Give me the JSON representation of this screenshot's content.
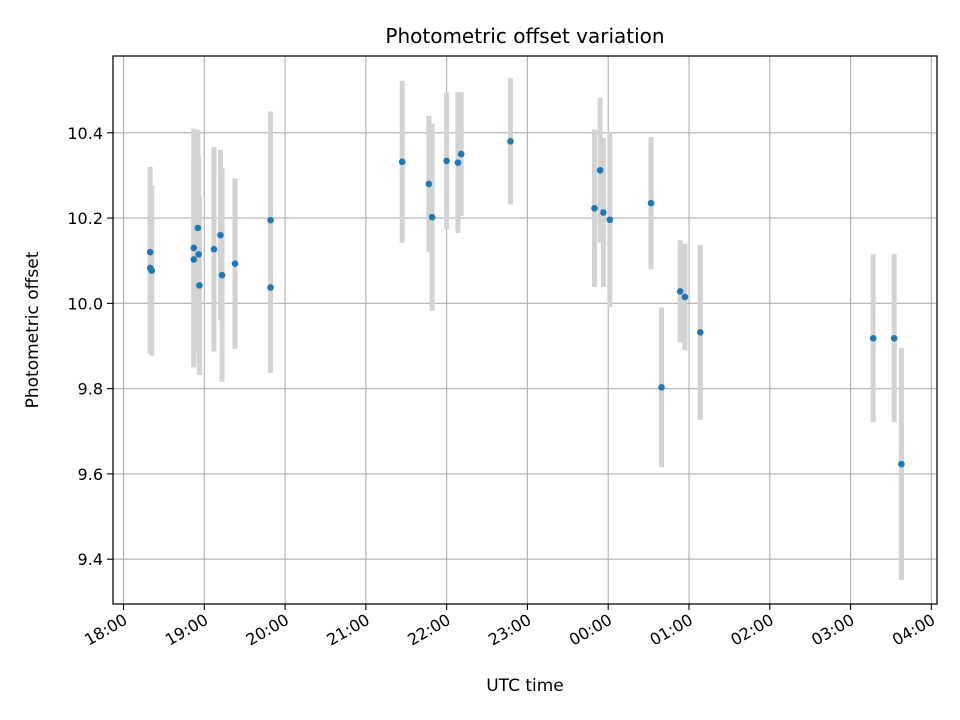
{
  "chart_data": {
    "type": "scatter",
    "title": "Photometric offset variation",
    "xlabel": "UTC time",
    "ylabel": "Photometric offset",
    "x_unit": "hours after 18:00 UTC",
    "xlim": [
      -0.13,
      10.07
    ],
    "ylim": [
      9.295,
      10.58
    ],
    "x_ticks": [
      {
        "value": 0,
        "label": "18:00"
      },
      {
        "value": 1,
        "label": "19:00"
      },
      {
        "value": 2,
        "label": "20:00"
      },
      {
        "value": 3,
        "label": "21:00"
      },
      {
        "value": 4,
        "label": "22:00"
      },
      {
        "value": 5,
        "label": "23:00"
      },
      {
        "value": 6,
        "label": "00:00"
      },
      {
        "value": 7,
        "label": "01:00"
      },
      {
        "value": 8,
        "label": "02:00"
      },
      {
        "value": 9,
        "label": "03:00"
      },
      {
        "value": 10,
        "label": "04:00"
      }
    ],
    "y_ticks": [
      {
        "value": 9.4,
        "label": "9.4"
      },
      {
        "value": 9.6,
        "label": "9.6"
      },
      {
        "value": 9.8,
        "label": "9.8"
      },
      {
        "value": 10.0,
        "label": "10.0"
      },
      {
        "value": 10.2,
        "label": "10.2"
      },
      {
        "value": 10.4,
        "label": "10.4"
      }
    ],
    "grid": true,
    "marker_color": "#1f77b4",
    "errorbar_color": "#d3d3d3",
    "points": [
      {
        "x": 0.33,
        "y": 10.12,
        "err": 0.2
      },
      {
        "x": 0.33,
        "y": 10.083,
        "err": 0.2
      },
      {
        "x": 0.35,
        "y": 10.077,
        "err": 0.2
      },
      {
        "x": 0.87,
        "y": 10.13,
        "err": 0.28
      },
      {
        "x": 0.87,
        "y": 10.103,
        "err": 0.25
      },
      {
        "x": 0.92,
        "y": 10.177,
        "err": 0.23
      },
      {
        "x": 0.93,
        "y": 10.115,
        "err": 0.23
      },
      {
        "x": 0.94,
        "y": 10.042,
        "err": 0.21
      },
      {
        "x": 1.12,
        "y": 10.127,
        "err": 0.24
      },
      {
        "x": 1.2,
        "y": 10.16,
        "err": 0.2
      },
      {
        "x": 1.22,
        "y": 10.066,
        "err": 0.25
      },
      {
        "x": 1.38,
        "y": 10.093,
        "err": 0.2
      },
      {
        "x": 1.82,
        "y": 10.195,
        "err": 0.255
      },
      {
        "x": 1.82,
        "y": 10.037,
        "err": 0.2
      },
      {
        "x": 3.45,
        "y": 10.332,
        "err": 0.19
      },
      {
        "x": 3.78,
        "y": 10.28,
        "err": 0.16
      },
      {
        "x": 3.82,
        "y": 10.202,
        "err": 0.22
      },
      {
        "x": 4.0,
        "y": 10.334,
        "err": 0.16
      },
      {
        "x": 4.14,
        "y": 10.33,
        "err": 0.165
      },
      {
        "x": 4.18,
        "y": 10.35,
        "err": 0.145
      },
      {
        "x": 4.79,
        "y": 10.38,
        "err": 0.148
      },
      {
        "x": 5.83,
        "y": 10.223,
        "err": 0.185
      },
      {
        "x": 5.9,
        "y": 10.312,
        "err": 0.17
      },
      {
        "x": 5.94,
        "y": 10.213,
        "err": 0.175
      },
      {
        "x": 6.02,
        "y": 10.196,
        "err": 0.205
      },
      {
        "x": 6.53,
        "y": 10.235,
        "err": 0.155
      },
      {
        "x": 6.66,
        "y": 9.803,
        "err": 0.187
      },
      {
        "x": 6.89,
        "y": 10.028,
        "err": 0.12
      },
      {
        "x": 6.95,
        "y": 10.015,
        "err": 0.125
      },
      {
        "x": 7.14,
        "y": 9.932,
        "err": 0.205
      },
      {
        "x": 9.28,
        "y": 9.918,
        "err": 0.197
      },
      {
        "x": 9.54,
        "y": 9.918,
        "err": 0.197
      },
      {
        "x": 9.63,
        "y": 9.623,
        "err": 0.272
      }
    ]
  }
}
